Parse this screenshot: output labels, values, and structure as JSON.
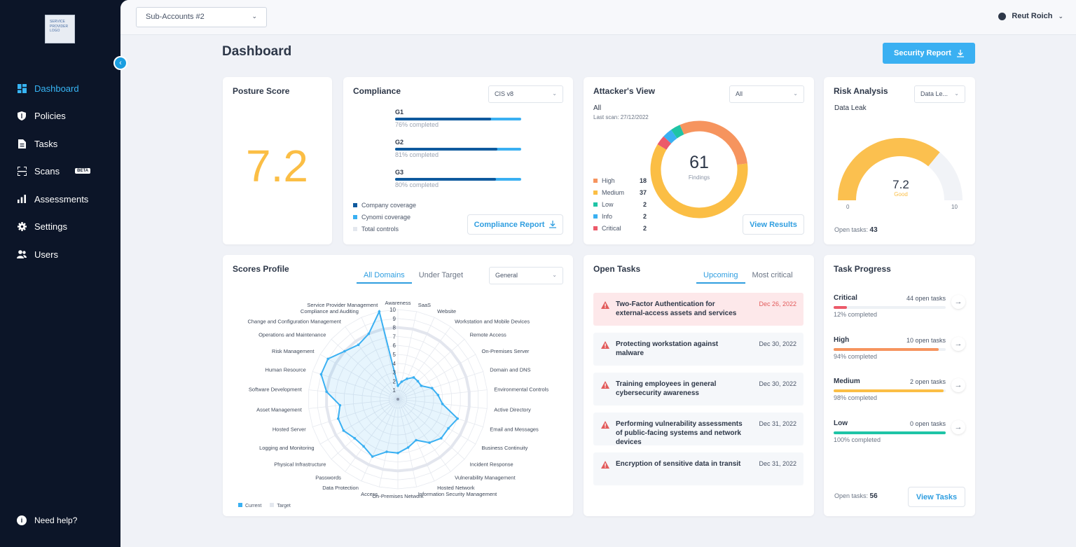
{
  "logo": {
    "text": "SERVICE PROVIDER LOGO"
  },
  "sidebar": {
    "items": [
      {
        "label": "Dashboard",
        "icon": "dashboard-icon"
      },
      {
        "label": "Policies",
        "icon": "shield-icon"
      },
      {
        "label": "Tasks",
        "icon": "document-icon"
      },
      {
        "label": "Scans",
        "icon": "scan-icon",
        "badge": "BETA"
      },
      {
        "label": "Assessments",
        "icon": "bar-chart-icon"
      },
      {
        "label": "Settings",
        "icon": "gear-icon"
      },
      {
        "label": "Users",
        "icon": "users-icon"
      }
    ],
    "help": "Need help?"
  },
  "topbar": {
    "account": "Sub-Accounts #2",
    "user": "Reut Roich"
  },
  "page": {
    "title": "Dashboard",
    "security_report": "Security Report"
  },
  "posture": {
    "title": "Posture Score",
    "score": "7.2"
  },
  "compliance": {
    "title": "Compliance",
    "framework": "CIS v8",
    "groups": [
      {
        "label": "G1",
        "pct": "76% completed",
        "company": 0.76
      },
      {
        "label": "G2",
        "pct": "81% completed",
        "company": 0.81
      },
      {
        "label": "G3",
        "pct": "80% completed",
        "company": 0.8
      }
    ],
    "legend": [
      "Company coverage",
      "Cynomi coverage",
      "Total controls"
    ],
    "report_button": "Compliance Report"
  },
  "attacker": {
    "title": "Attacker's View",
    "filter": "All",
    "scope": "All",
    "last_scan": "Last scan: 27/12/2022",
    "total": "61",
    "total_label": "Findings",
    "findings": [
      {
        "label": "High",
        "n": "18",
        "color": "#f6945e"
      },
      {
        "label": "Medium",
        "n": "37",
        "color": "#fbbe45"
      },
      {
        "label": "Low",
        "n": "2",
        "color": "#1fc4a6"
      },
      {
        "label": "Info",
        "n": "2",
        "color": "#3ab0f2"
      },
      {
        "label": "Critical",
        "n": "2",
        "color": "#ec5a6a"
      }
    ],
    "button": "View Results"
  },
  "risk": {
    "title": "Risk Analysis",
    "filter": "Data Le...",
    "subtitle": "Data Leak",
    "value": "7.2",
    "rating": "Good",
    "min": "0",
    "max": "10",
    "score_fraction": 0.72,
    "open_tasks_label": "Open tasks:",
    "open_tasks": "43"
  },
  "scores": {
    "title": "Scores Profile",
    "tabs": [
      "All Domains",
      "Under Target"
    ],
    "filter": "General",
    "ticks": [
      "1",
      "2",
      "3",
      "4",
      "5",
      "6",
      "7",
      "8",
      "9",
      "10"
    ],
    "legend": [
      "Current",
      "Target"
    ]
  },
  "chart_data": {
    "type": "radar",
    "title": "Scores Profile",
    "rlim": [
      0,
      10
    ],
    "categories": [
      "Awareness",
      "SaaS",
      "Website",
      "Workstation and Mobile Devices",
      "Remote Access",
      "On-Premises Server",
      "Domain and DNS",
      "Environmental Controls",
      "Active Directory",
      "Email and Messages",
      "Business Continuity",
      "Incident Response",
      "Vulnerability Management",
      "Hosted Network",
      "Information Security Management",
      "On-Premises Network",
      "Access",
      "Data Protection",
      "Passwords",
      "Physical Infrastructure",
      "Logging and Monitoring",
      "Hosted Server",
      "Asset Management",
      "Software Development",
      "Human Resource",
      "Risk Management",
      "Operations and Maintenance",
      "Change and Configuration Management",
      "Compliance and Auditing",
      "Service Provider Management"
    ],
    "series": [
      {
        "name": "Current",
        "values": [
          1.5,
          2,
          2.5,
          3,
          3,
          3,
          4,
          4.5,
          5,
          7,
          6.5,
          6.5,
          6,
          5,
          5.5,
          6,
          6,
          7,
          6.5,
          6.5,
          7,
          7,
          6.5,
          8,
          9,
          9,
          8,
          7.5,
          8,
          10
        ]
      },
      {
        "name": "Target",
        "values": [
          8,
          8,
          8,
          8,
          8,
          8,
          8,
          8,
          8,
          8,
          8,
          8,
          8,
          8,
          8,
          8,
          8,
          8,
          8,
          8,
          8,
          8,
          8,
          8,
          8,
          8,
          8,
          8,
          8,
          8
        ]
      }
    ]
  },
  "open_tasks": {
    "title": "Open Tasks",
    "tabs": [
      "Upcoming",
      "Most critical"
    ],
    "items": [
      {
        "title": "Two-Factor Authentication for external-access assets and services",
        "date": "Dec 26, 2022"
      },
      {
        "title": "Protecting workstation against malware",
        "date": "Dec 30, 2022"
      },
      {
        "title": "Training employees in general cybersecurity awareness",
        "date": "Dec 30, 2022"
      },
      {
        "title": "Performing vulnerability assessments of public-facing systems and network devices",
        "date": "Dec 31, 2022"
      },
      {
        "title": "Encryption of sensitive data in transit",
        "date": "Dec 31, 2022"
      }
    ]
  },
  "task_progress": {
    "title": "Task Progress",
    "items": [
      {
        "label": "Critical",
        "open": "44 open tasks",
        "pct": "12% completed",
        "fraction": 0.12,
        "color": "#ec5a6a"
      },
      {
        "label": "High",
        "open": "10 open tasks",
        "pct": "94% completed",
        "fraction": 0.94,
        "color": "#f6945e"
      },
      {
        "label": "Medium",
        "open": "2 open tasks",
        "pct": "98% completed",
        "fraction": 0.98,
        "color": "#fbbe45"
      },
      {
        "label": "Low",
        "open": "0 open tasks",
        "pct": "100% completed",
        "fraction": 1,
        "color": "#1fc4a6"
      }
    ],
    "open_tasks_label": "Open tasks:",
    "open_tasks": "56",
    "button": "View Tasks"
  }
}
